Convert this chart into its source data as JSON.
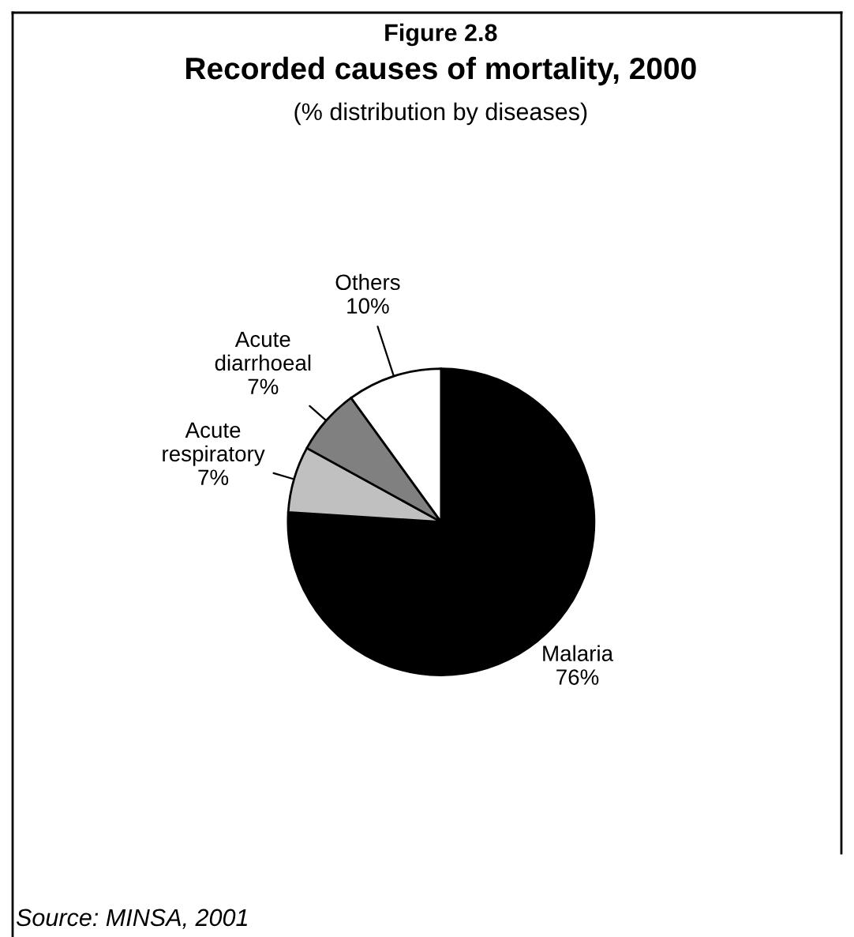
{
  "chart_data": {
    "type": "pie",
    "title": "Figure 2.8",
    "subtitle": "Recorded causes of mortality, 2000",
    "annotations": [
      "(% distribution by diseases)",
      "Source: MINSA, 2001"
    ],
    "categories": [
      "Malaria",
      "Acute respiratory",
      "Acute diarrhoeal",
      "Others"
    ],
    "values": [
      76,
      7,
      7,
      10
    ],
    "value_labels": [
      "76%",
      "7%",
      "7%",
      "10%"
    ],
    "colors": [
      "#000000",
      "#c0c0c0",
      "#808080",
      "#ffffff"
    ]
  }
}
